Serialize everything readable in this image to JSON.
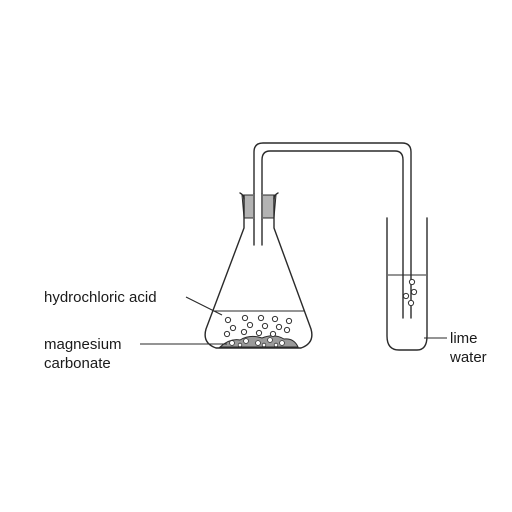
{
  "labels": {
    "acid": "hydrochloric acid",
    "carbonate_line1": "magnesium",
    "carbonate_line2": "carbonate",
    "limewater_line1": "lime",
    "limewater_line2": "water"
  },
  "colors": {
    "line": "#2a2a2a",
    "stopper": "#b3b3b3",
    "solid": "#9a9a9a",
    "text": "#1a1a1a"
  }
}
